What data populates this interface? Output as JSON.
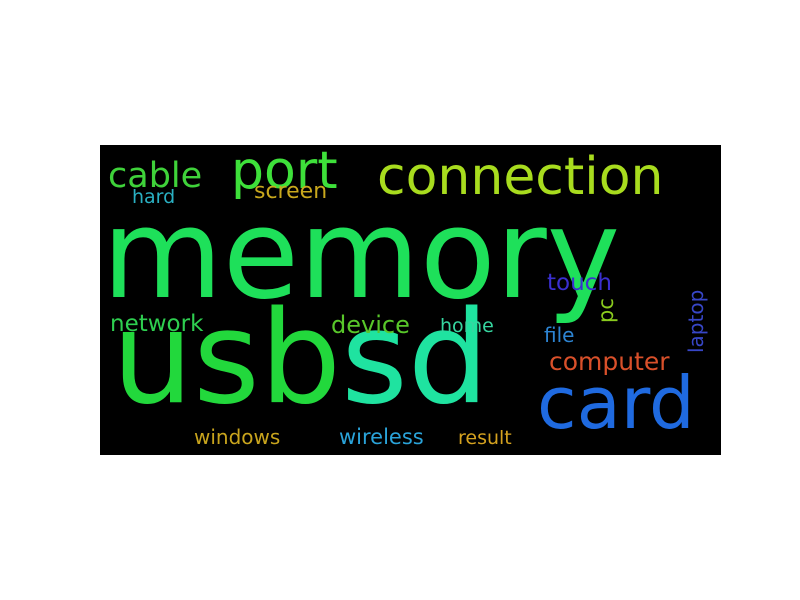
{
  "words": {
    "memory": {
      "text": "memory",
      "color": "#1ee05a"
    },
    "usbsd": {
      "text": "usbsd",
      "color": "#22d83c"
    },
    "usbsd_tail": {
      "text": "sd",
      "color": "#1fe3a0"
    },
    "card": {
      "text": "card",
      "color": "#1f6ae0"
    },
    "connection": {
      "text": "connection",
      "color": "#a8dc1e"
    },
    "port": {
      "text": "port",
      "color": "#3ee03a"
    },
    "cable": {
      "text": "cable",
      "color": "#3fd23a"
    },
    "screen": {
      "text": "screen",
      "color": "#c9a81d"
    },
    "hard": {
      "text": "hard",
      "color": "#2ab0c2"
    },
    "network": {
      "text": "network",
      "color": "#2ecf50"
    },
    "device": {
      "text": "device",
      "color": "#58c72a"
    },
    "home": {
      "text": "home",
      "color": "#36d6a0"
    },
    "touch": {
      "text": "touch",
      "color": "#3a2fd0"
    },
    "pc": {
      "text": "pc",
      "color": "#8acb1e"
    },
    "file": {
      "text": "file",
      "color": "#2d84d2"
    },
    "laptop": {
      "text": "laptop",
      "color": "#3746c7"
    },
    "computer": {
      "text": "computer",
      "color": "#d9502a"
    },
    "windows": {
      "text": "windows",
      "color": "#c8a41d"
    },
    "wireless": {
      "text": "wireless",
      "color": "#2aa3d9"
    },
    "result": {
      "text": "result",
      "color": "#d5a21f"
    }
  }
}
